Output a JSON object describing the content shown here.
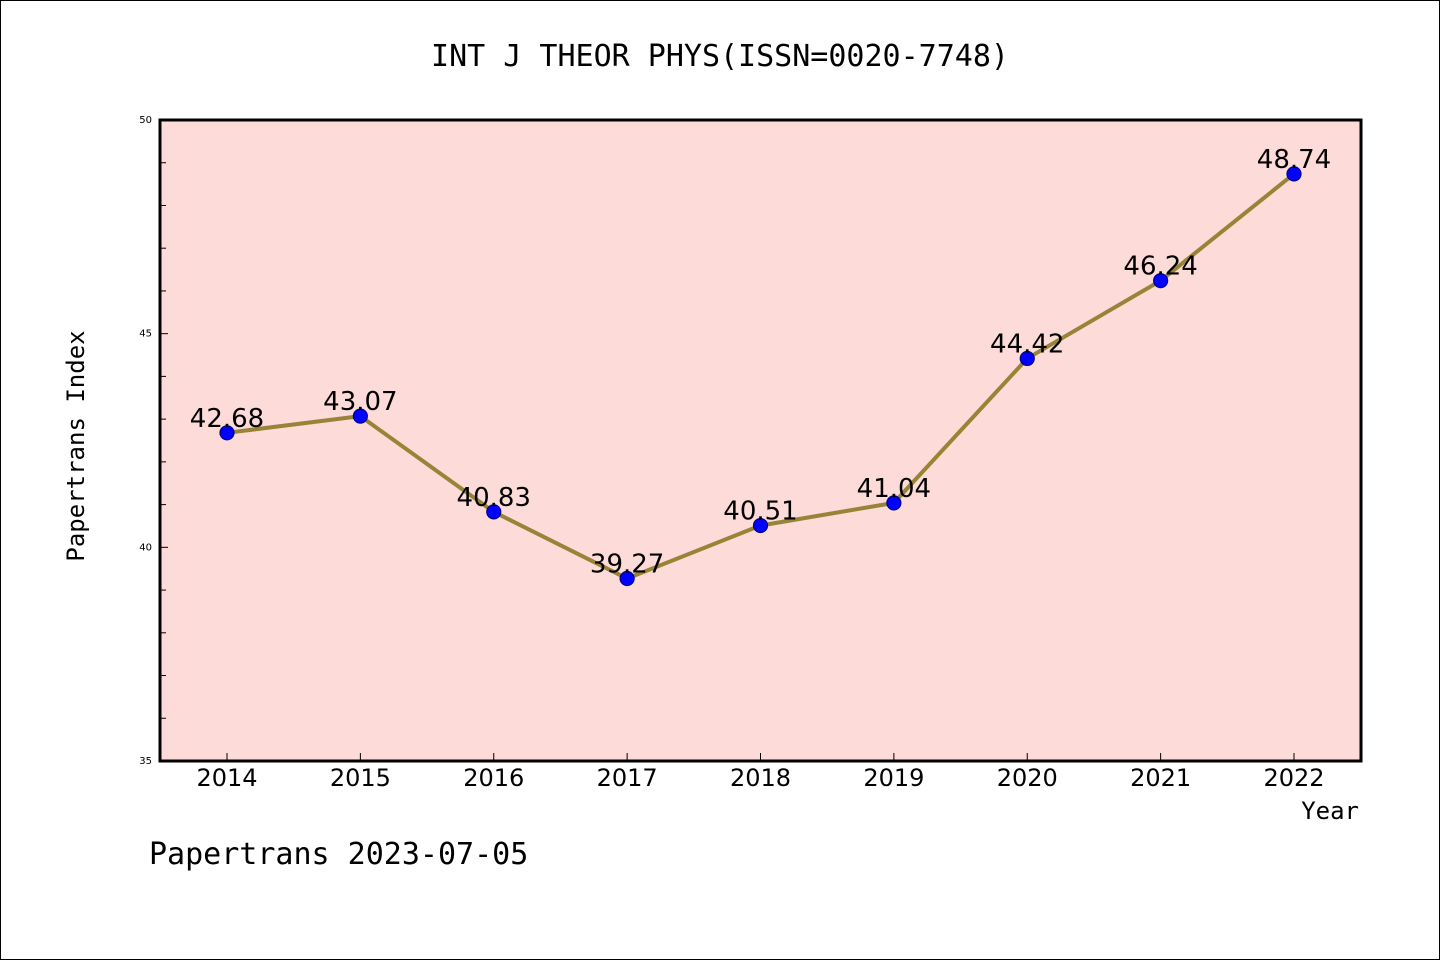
{
  "chart_data": {
    "type": "line",
    "title": "INT J THEOR PHYS(ISSN=0020-7748)",
    "xlabel": "Year",
    "ylabel": "Papertrans Index",
    "categories": [
      "2014",
      "2015",
      "2016",
      "2017",
      "2018",
      "2019",
      "2020",
      "2021",
      "2022"
    ],
    "series": [
      {
        "values": [
          42.68,
          43.07,
          40.83,
          39.27,
          40.51,
          41.04,
          44.42,
          46.24,
          48.74
        ],
        "labels": [
          "42.68",
          "43.07",
          "40.83",
          "39.27",
          "40.51",
          "41.04",
          "44.42",
          "46.24",
          "48.74"
        ]
      }
    ],
    "ylim": [
      35,
      50
    ],
    "y_major_ticks": [
      35,
      40,
      45,
      50
    ],
    "y_minor_step": 1,
    "grid": false,
    "legend": "none",
    "colors": {
      "plot_background": "#fcdbd8",
      "line": "#978436",
      "marker_fill": "#0000ff",
      "marker_edge": "#00008b",
      "axis": "#000000"
    }
  },
  "footer": {
    "text": "Papertrans 2023-07-05"
  }
}
